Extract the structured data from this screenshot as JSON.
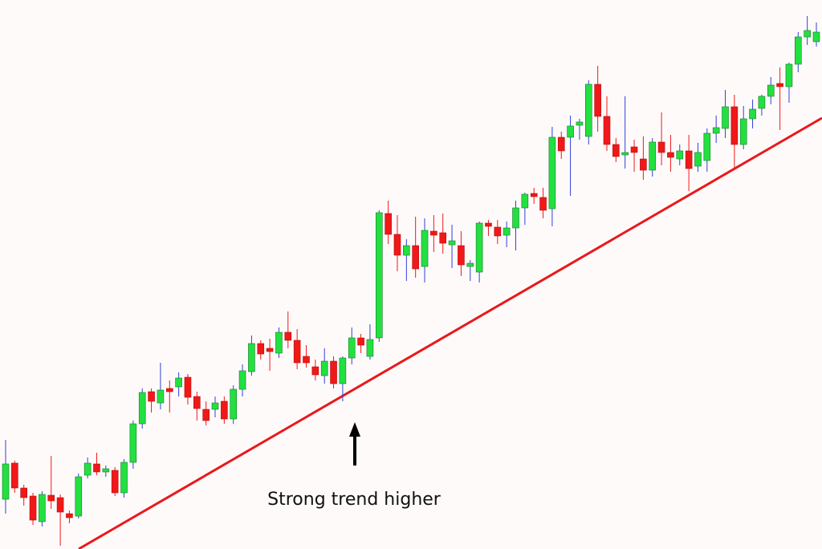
{
  "chart_data": {
    "type": "candlestick",
    "annotation": "Strong trend higher",
    "open": [
      62,
      107,
      76,
      66,
      34,
      67,
      64,
      44,
      41,
      92,
      106,
      96,
      98,
      70,
      108,
      156,
      196,
      182,
      200,
      202,
      214,
      190,
      174,
      174,
      184,
      162,
      199,
      221,
      256,
      250,
      244,
      270,
      260,
      240,
      227,
      216,
      234,
      206,
      238,
      263,
      240,
      263,
      418,
      392,
      366,
      378,
      352,
      396,
      394,
      379,
      378,
      352,
      345,
      406,
      401,
      391,
      400,
      425,
      443,
      438,
      424,
      513,
      513,
      528,
      514,
      579,
      539,
      504,
      491,
      501,
      486,
      472,
      507,
      494,
      486,
      496,
      477,
      484,
      518,
      524,
      551,
      504,
      536,
      549,
      564,
      580,
      576,
      604,
      638,
      632
    ],
    "high": [
      136,
      110,
      80,
      70,
      72,
      116,
      68,
      48,
      94,
      114,
      120,
      104,
      102,
      112,
      160,
      200,
      200,
      232,
      210,
      220,
      218,
      196,
      184,
      190,
      190,
      204,
      230,
      266,
      260,
      262,
      276,
      296,
      274,
      254,
      236,
      250,
      240,
      240,
      276,
      268,
      280,
      422,
      434,
      416,
      386,
      414,
      412,
      416,
      418,
      404,
      396,
      360,
      408,
      410,
      410,
      408,
      434,
      444,
      450,
      450,
      526,
      520,
      540,
      536,
      584,
      602,
      564,
      512,
      564,
      510,
      514,
      512,
      544,
      516,
      504,
      516,
      506,
      524,
      540,
      572,
      566,
      552,
      560,
      566,
      588,
      600,
      606,
      644,
      664,
      656
    ],
    "low": [
      44,
      70,
      54,
      30,
      28,
      50,
      4,
      32,
      38,
      88,
      92,
      90,
      66,
      64,
      100,
      150,
      170,
      174,
      170,
      190,
      180,
      160,
      154,
      164,
      156,
      156,
      190,
      216,
      236,
      222,
      238,
      250,
      224,
      226,
      210,
      206,
      200,
      184,
      230,
      244,
      236,
      258,
      380,
      346,
      334,
      338,
      332,
      370,
      368,
      350,
      340,
      334,
      332,
      390,
      380,
      376,
      372,
      404,
      430,
      412,
      402,
      486,
      440,
      510,
      504,
      520,
      496,
      482,
      474,
      470,
      460,
      464,
      478,
      470,
      478,
      446,
      470,
      470,
      506,
      512,
      472,
      498,
      524,
      540,
      554,
      522,
      556,
      594,
      628,
      626
    ],
    "close": [
      106,
      76,
      64,
      36,
      68,
      60,
      46,
      39,
      90,
      107,
      96,
      100,
      70,
      108,
      156,
      195,
      184,
      198,
      196,
      213,
      189,
      175,
      160,
      182,
      162,
      199,
      222,
      256,
      243,
      246,
      270,
      260,
      232,
      232,
      217,
      234,
      206,
      238,
      263,
      254,
      261,
      419,
      392,
      366,
      378,
      349,
      397,
      391,
      381,
      384,
      354,
      356,
      406,
      402,
      390,
      400,
      425,
      442,
      439,
      422,
      513,
      496,
      527,
      532,
      579,
      539,
      504,
      489,
      494,
      494,
      472,
      507,
      494,
      488,
      496,
      474,
      494,
      518,
      525,
      551,
      504,
      536,
      548,
      564,
      578,
      576,
      604,
      638,
      646,
      644
    ],
    "up_color": "#22e040",
    "down_color": "#f01818",
    "up_wick_color": "#3040d8",
    "down_wick_color": "#f01818",
    "ylim": [
      0,
      684
    ]
  }
}
